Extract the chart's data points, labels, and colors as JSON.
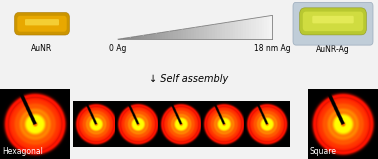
{
  "bg_color": "#f0f0f0",
  "aunr_label": "AuNR",
  "aunrag_label": "AuNR-Ag",
  "ag0_label": "0 Ag",
  "ag18_label": "18 nm Ag",
  "self_assembly_label": "↓ Self assembly",
  "hexagonal_label": "Hexagonal",
  "square_label": "Square",
  "aunr_gold_dark": "#c8940a",
  "aunr_gold_mid": "#e8b820",
  "aunr_gold_light": "#f8e050",
  "aunrag_shell_dark": "#b0b830",
  "aunrag_shell_light": "#d8e050",
  "aunrag_bg": "#bbc8d4",
  "label_fontsize": 5.5,
  "self_assembly_fontsize": 7.0,
  "overlay_label_fontsize": 5.5
}
